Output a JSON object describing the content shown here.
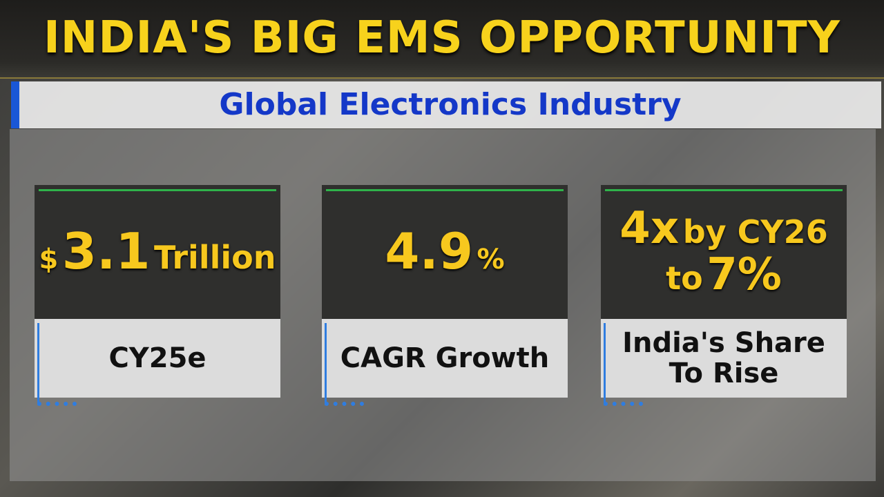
{
  "header": {
    "title": "INDIA'S BIG EMS OPPORTUNITY",
    "subtitle": "Global Electronics Industry"
  },
  "cards": [
    {
      "value_lines": [
        [
          "$",
          "3.1",
          "Trillion"
        ]
      ],
      "label_lines": [
        "CY25e"
      ]
    },
    {
      "value_lines": [
        [
          "4.9",
          "%"
        ]
      ],
      "label_lines": [
        "CAGR Growth"
      ]
    },
    {
      "value_lines": [
        [
          "4x",
          "by CY26"
        ],
        [
          "to",
          "7%"
        ]
      ],
      "label_lines": [
        "India's Share",
        "To Rise"
      ]
    }
  ]
}
